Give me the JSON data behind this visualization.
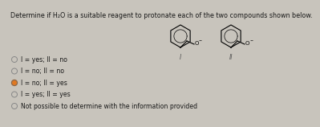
{
  "title": "Determine if H₂O is a suitable reagent to protonate each of the two compounds shown below.",
  "options": [
    {
      "text": "I = yes; II = no",
      "selected": false
    },
    {
      "text": "I = no; II = no",
      "selected": false
    },
    {
      "text": "I = no; II = yes",
      "selected": true
    },
    {
      "text": "I = yes; II = yes",
      "selected": false
    },
    {
      "text": "Not possible to determine with the information provided",
      "selected": false
    }
  ],
  "bg_color": "#c8c4bc",
  "text_color": "#1a1a1a",
  "title_fontsize": 5.8,
  "option_fontsize": 5.6,
  "radio_selected_color": "#e07820",
  "radio_unsel_color": "#888888",
  "mol_label_fontsize": 5.5,
  "o_fontsize": 5.0
}
